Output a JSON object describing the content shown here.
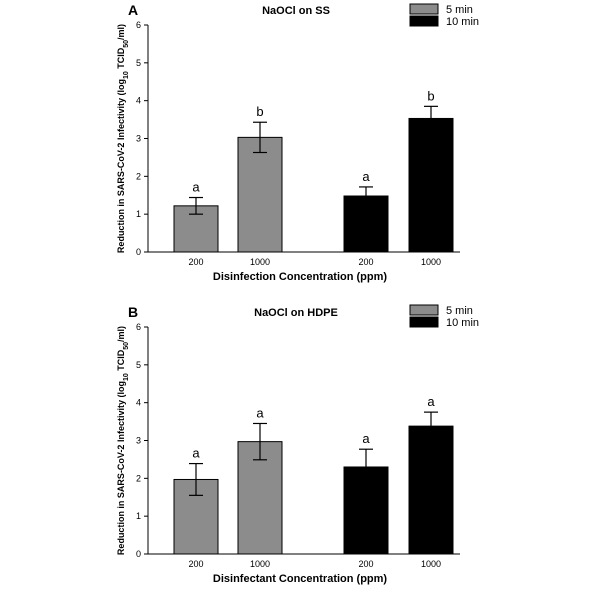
{
  "chart_data": [
    {
      "type": "bar",
      "panel": "A",
      "title": "NaOCl on SS",
      "xlabel": "Disinfection Concentration (ppm)",
      "ylabel": "Reduction in SARS-CoV-2 Infectivity (log10 TCID50/ml)",
      "ylabel_parts": [
        "Reduction in SARS-CoV-2 Infectivity (log",
        "10",
        " TCID",
        "50",
        "/ml)"
      ],
      "ylim": [
        0,
        6
      ],
      "yticks": [
        "0",
        "1",
        "2",
        "3",
        "4",
        "5",
        "6"
      ],
      "legend_placement": "top-right",
      "legend": [
        "5 min",
        "10 min"
      ],
      "colors": [
        "#8c8c8c",
        "#000000"
      ],
      "groups": [
        {
          "series": "5 min",
          "bars": [
            {
              "category": "200",
              "value": 1.22,
              "err": 0.22,
              "label": "a"
            },
            {
              "category": "1000",
              "value": 3.03,
              "err": 0.4,
              "label": "b"
            }
          ]
        },
        {
          "series": "10 min",
          "bars": [
            {
              "category": "200",
              "value": 1.48,
              "err": 0.24,
              "label": "a"
            },
            {
              "category": "1000",
              "value": 3.53,
              "err": 0.32,
              "label": "b"
            }
          ]
        }
      ]
    },
    {
      "type": "bar",
      "panel": "B",
      "title": "NaOCl on HDPE",
      "xlabel": "Disinfectant Concentration (ppm)",
      "ylabel": "Reduction in SARS-CoV-2 Infectivity (log10 TCID50/ml)",
      "ylabel_parts": [
        "Reduction in SARS-CoV-2 Infectivity (log",
        "10",
        " TCID",
        "50",
        "/ml)"
      ],
      "ylim": [
        0,
        6
      ],
      "yticks": [
        "0",
        "1",
        "2",
        "3",
        "4",
        "5",
        "6"
      ],
      "legend_placement": "top-right",
      "legend": [
        "5 min",
        "10 min"
      ],
      "colors": [
        "#8c8c8c",
        "#000000"
      ],
      "groups": [
        {
          "series": "5 min",
          "bars": [
            {
              "category": "200",
              "value": 1.97,
              "err": 0.42,
              "label": "a"
            },
            {
              "category": "1000",
              "value": 2.97,
              "err": 0.48,
              "label": "a"
            }
          ]
        },
        {
          "series": "10 min",
          "bars": [
            {
              "category": "200",
              "value": 2.3,
              "err": 0.47,
              "label": "a"
            },
            {
              "category": "1000",
              "value": 3.38,
              "err": 0.37,
              "label": "a"
            }
          ]
        }
      ]
    }
  ]
}
